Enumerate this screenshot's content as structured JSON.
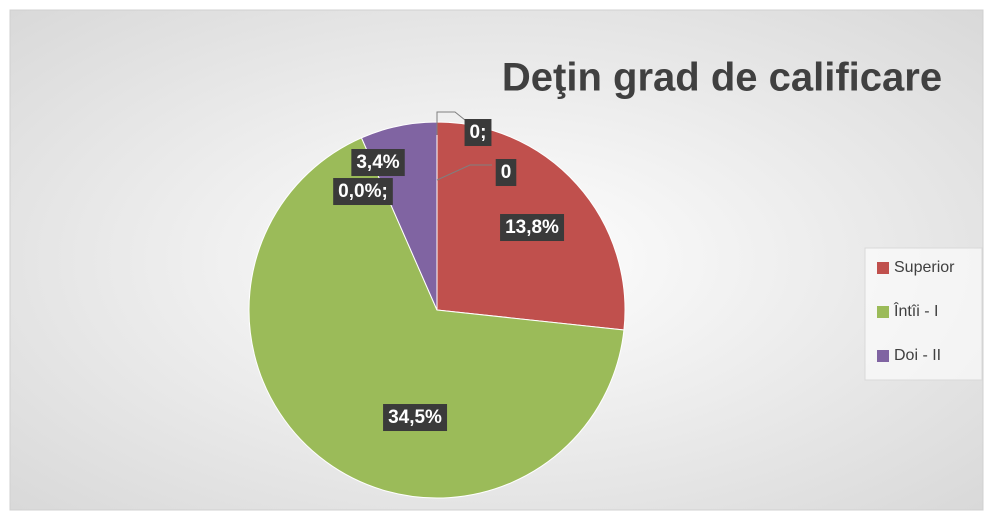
{
  "chart_data": {
    "type": "pie",
    "title": "Deţin grad de calificare",
    "categories": [
      "Superior",
      "Întîi - I",
      "Doi - II"
    ],
    "values": [
      13.8,
      34.5,
      3.4
    ],
    "value_labels": [
      "13,8%",
      "34,5%",
      "3,4%"
    ],
    "colors": [
      "#c0504d",
      "#9bbb59",
      "#8064a2"
    ],
    "annotations": [
      "0;",
      "0",
      "0,0%;"
    ],
    "legend": "right"
  }
}
